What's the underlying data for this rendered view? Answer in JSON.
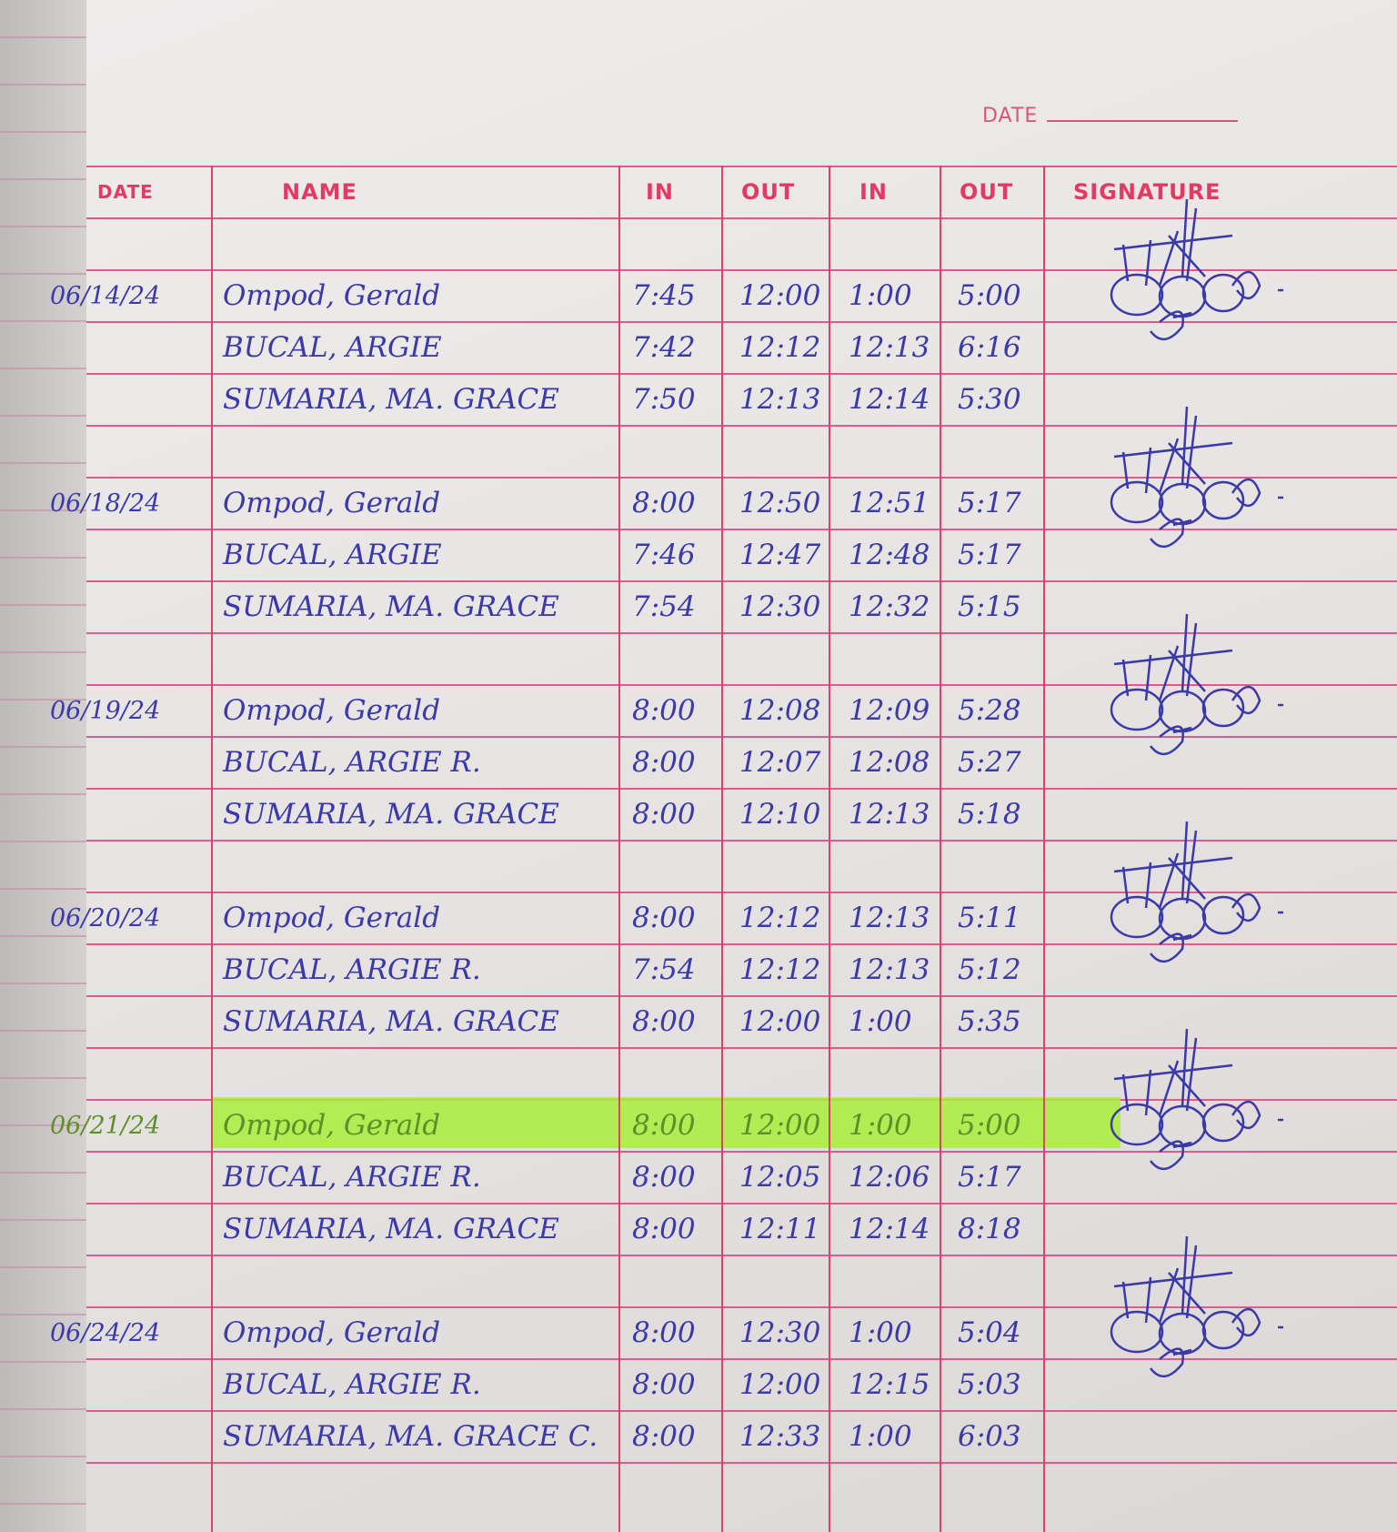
{
  "page_header": {
    "date_label": "DATE"
  },
  "columns": [
    "DATE",
    "NAME",
    "IN",
    "OUT",
    "IN",
    "OUT",
    "SIGNATURE"
  ],
  "ink_color": "#3a3aa8",
  "rule_color": "#e25a8d",
  "highlight_color": "#a8ee3a",
  "groups": [
    {
      "date": "06/14/24",
      "entries": [
        {
          "name": "Ompod, Gerald",
          "in1": "7:45",
          "out1": "12:00",
          "in2": "1:00",
          "out2": "5:00"
        },
        {
          "name": "BUCAL, ARGIE",
          "in1": "7:42",
          "out1": "12:12",
          "in2": "12:13",
          "out2": "6:16"
        },
        {
          "name": "SUMARIA, MA. GRACE",
          "in1": "7:50",
          "out1": "12:13",
          "in2": "12:14",
          "out2": "5:30"
        }
      ]
    },
    {
      "date": "06/18/24",
      "entries": [
        {
          "name": "Ompod, Gerald",
          "in1": "8:00",
          "out1": "12:50",
          "in2": "12:51",
          "out2": "5:17"
        },
        {
          "name": "BUCAL, ARGIE",
          "in1": "7:46",
          "out1": "12:47",
          "in2": "12:48",
          "out2": "5:17"
        },
        {
          "name": "SUMARIA, MA. GRACE",
          "in1": "7:54",
          "out1": "12:30",
          "in2": "12:32",
          "out2": "5:15"
        }
      ]
    },
    {
      "date": "06/19/24",
      "entries": [
        {
          "name": "Ompod, Gerald",
          "in1": "8:00",
          "out1": "12:08",
          "in2": "12:09",
          "out2": "5:28"
        },
        {
          "name": "BUCAL, ARGIE R.",
          "in1": "8:00",
          "out1": "12:07",
          "in2": "12:08",
          "out2": "5:27"
        },
        {
          "name": "SUMARIA, MA. GRACE",
          "in1": "8:00",
          "out1": "12:10",
          "in2": "12:13",
          "out2": "5:18"
        }
      ]
    },
    {
      "date": "06/20/24",
      "entries": [
        {
          "name": "Ompod, Gerald",
          "in1": "8:00",
          "out1": "12:12",
          "in2": "12:13",
          "out2": "5:11"
        },
        {
          "name": "BUCAL, ARGIE R.",
          "in1": "7:54",
          "out1": "12:12",
          "in2": "12:13",
          "out2": "5:12"
        },
        {
          "name": "SUMARIA, MA. GRACE",
          "in1": "8:00",
          "out1": "12:00",
          "in2": "1:00",
          "out2": "5:35"
        }
      ]
    },
    {
      "date": "06/21/24",
      "entries": [
        {
          "name": "Ompod, Gerald",
          "in1": "8:00",
          "out1": "12:00",
          "in2": "1:00",
          "out2": "5:00",
          "highlighted": true
        },
        {
          "name": "BUCAL, ARGIE R.",
          "in1": "8:00",
          "out1": "12:05",
          "in2": "12:06",
          "out2": "5:17"
        },
        {
          "name": "SUMARIA, MA. GRACE",
          "in1": "8:00",
          "out1": "12:11",
          "in2": "12:14",
          "out2": "8:18"
        }
      ]
    },
    {
      "date": "06/24/24",
      "entries": [
        {
          "name": "Ompod, Gerald",
          "in1": "8:00",
          "out1": "12:30",
          "in2": "1:00",
          "out2": "5:04"
        },
        {
          "name": "BUCAL, ARGIE R.",
          "in1": "8:00",
          "out1": "12:00",
          "in2": "12:15",
          "out2": "5:03"
        },
        {
          "name": "SUMARIA, MA. GRACE C.",
          "in1": "8:00",
          "out1": "12:33",
          "in2": "1:00",
          "out2": "6:03"
        }
      ]
    }
  ]
}
